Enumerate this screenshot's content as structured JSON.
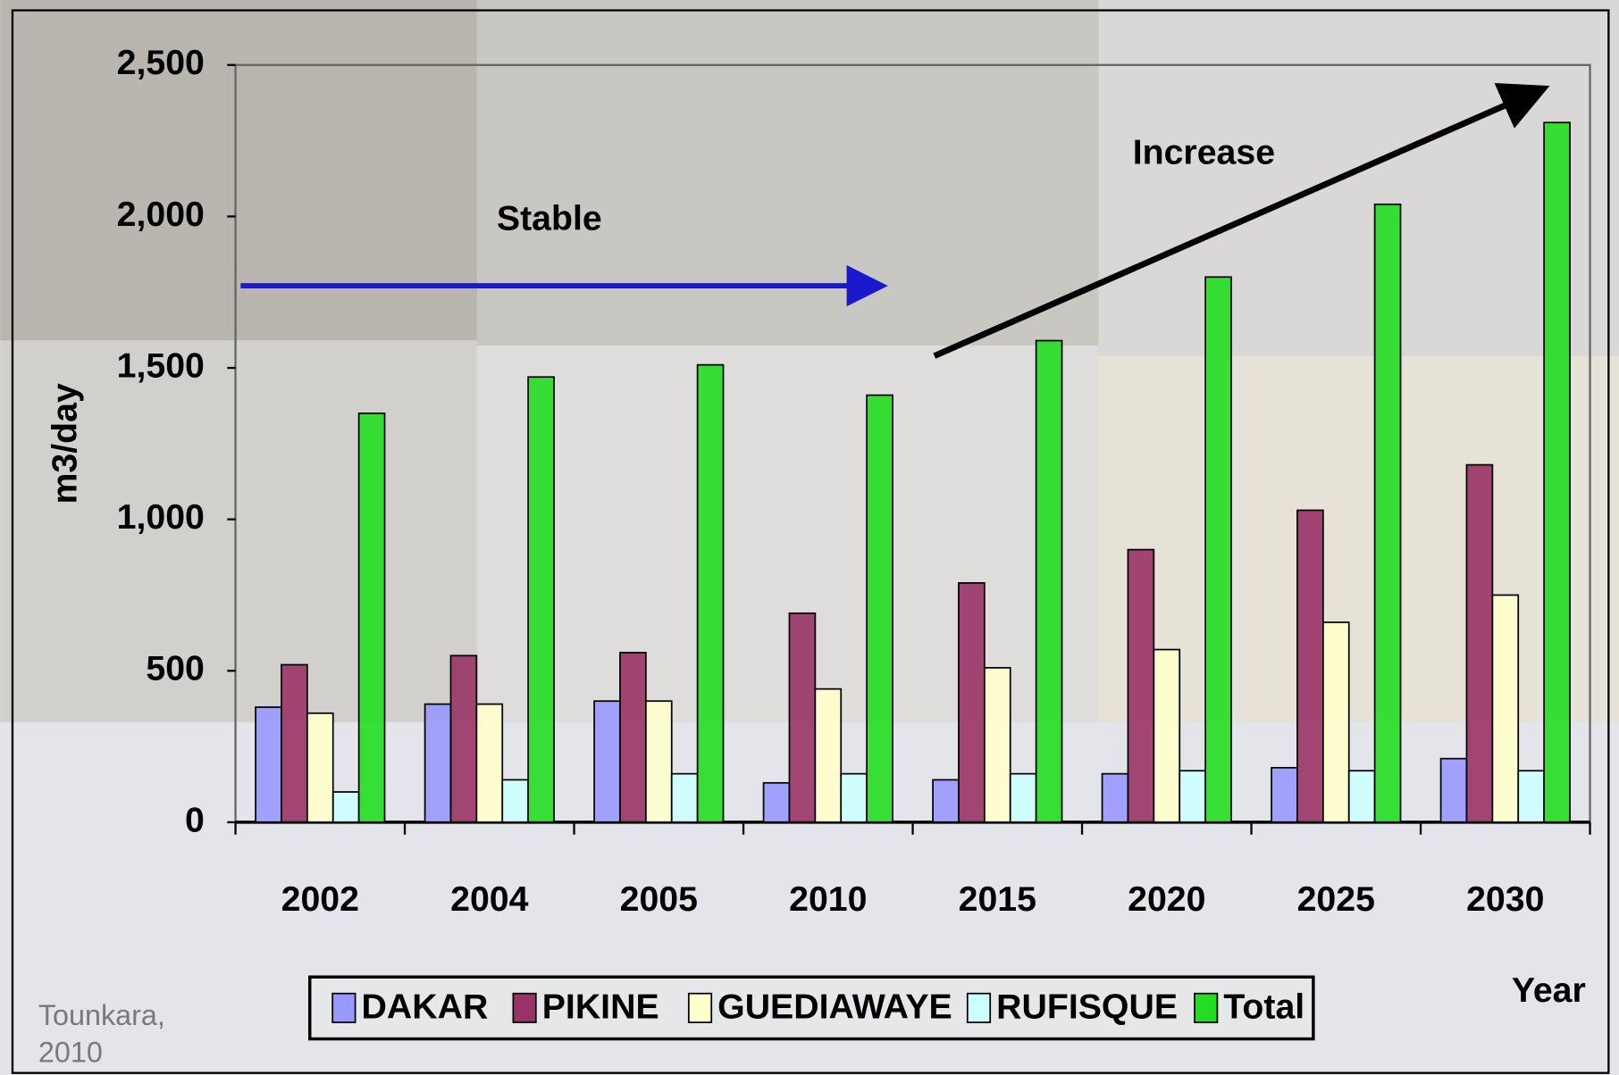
{
  "chart_data": {
    "type": "bar",
    "categories": [
      "2002",
      "2004",
      "2005",
      "2010",
      "2015",
      "2020",
      "2025",
      "2030"
    ],
    "series": [
      {
        "name": "DAKAR",
        "color": "#9999ff",
        "values": [
          380,
          390,
          400,
          130,
          140,
          160,
          180,
          210
        ]
      },
      {
        "name": "PIKINE",
        "color": "#993366",
        "values": [
          520,
          550,
          560,
          690,
          790,
          900,
          1030,
          1180
        ]
      },
      {
        "name": "GUEDIAWAYE",
        "color": "#ffffcc",
        "values": [
          360,
          390,
          400,
          440,
          510,
          570,
          660,
          750
        ]
      },
      {
        "name": "RUFISQUE",
        "color": "#ccffff",
        "values": [
          100,
          140,
          160,
          160,
          160,
          170,
          170,
          170
        ]
      },
      {
        "name": "Total",
        "color": "#22dd22",
        "values": [
          1350,
          1470,
          1510,
          1410,
          1590,
          1800,
          2040,
          2310
        ]
      }
    ],
    "ylabel": "m3/day",
    "xlabel": "Year",
    "ylim": [
      0,
      2500
    ],
    "yticks": [
      0,
      500,
      {
        "value": 1000,
        "label": "1,000"
      },
      {
        "value": 1500,
        "label": "1,500"
      },
      {
        "value": 2000,
        "label": "2,000"
      },
      {
        "value": 2500,
        "label": "2,500"
      }
    ],
    "annotations": {
      "stable": "Stable",
      "increase": "Increase",
      "source": [
        "Tounkara,",
        "2010"
      ]
    },
    "legend": "bottom"
  }
}
